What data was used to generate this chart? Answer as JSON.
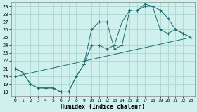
{
  "xlabel": "Humidex (Indice chaleur)",
  "background_color": "#cff0ec",
  "grid_color": "#aad8d0",
  "line_color": "#1a6e6e",
  "xlim": [
    -0.5,
    23.5
  ],
  "ylim": [
    17.5,
    29.5
  ],
  "xticks": [
    0,
    1,
    2,
    3,
    4,
    5,
    6,
    7,
    8,
    9,
    10,
    11,
    12,
    13,
    14,
    15,
    16,
    17,
    18,
    19,
    20,
    21,
    22,
    23
  ],
  "yticks": [
    18,
    19,
    20,
    21,
    22,
    23,
    24,
    25,
    26,
    27,
    28,
    29
  ],
  "series1_x": [
    0,
    1,
    2,
    3,
    4,
    5,
    6,
    7,
    8,
    9,
    10,
    11,
    12,
    13,
    14,
    15,
    16,
    17,
    18,
    19,
    20,
    21,
    22,
    23
  ],
  "series1_y": [
    21.0,
    20.5,
    19.0,
    18.5,
    18.5,
    18.5,
    18.0,
    18.0,
    20.0,
    21.5,
    24.0,
    24.0,
    23.5,
    24.0,
    27.0,
    28.5,
    28.5,
    29.0,
    29.0,
    26.0,
    25.5,
    26.0,
    25.5,
    25.0
  ],
  "series2_x": [
    0,
    1,
    2,
    3,
    4,
    5,
    6,
    7,
    8,
    9,
    10,
    11,
    12,
    13,
    14,
    15,
    16,
    17,
    18,
    19,
    20,
    21,
    22,
    23
  ],
  "series2_y": [
    21.0,
    20.5,
    19.0,
    18.5,
    18.5,
    18.5,
    18.0,
    18.0,
    20.0,
    21.5,
    26.0,
    27.0,
    27.0,
    23.5,
    24.0,
    28.5,
    28.5,
    29.3,
    29.0,
    28.5,
    27.5,
    26.0,
    25.5,
    25.0
  ],
  "series3_x": [
    0,
    23
  ],
  "series3_y": [
    20.0,
    25.0
  ]
}
